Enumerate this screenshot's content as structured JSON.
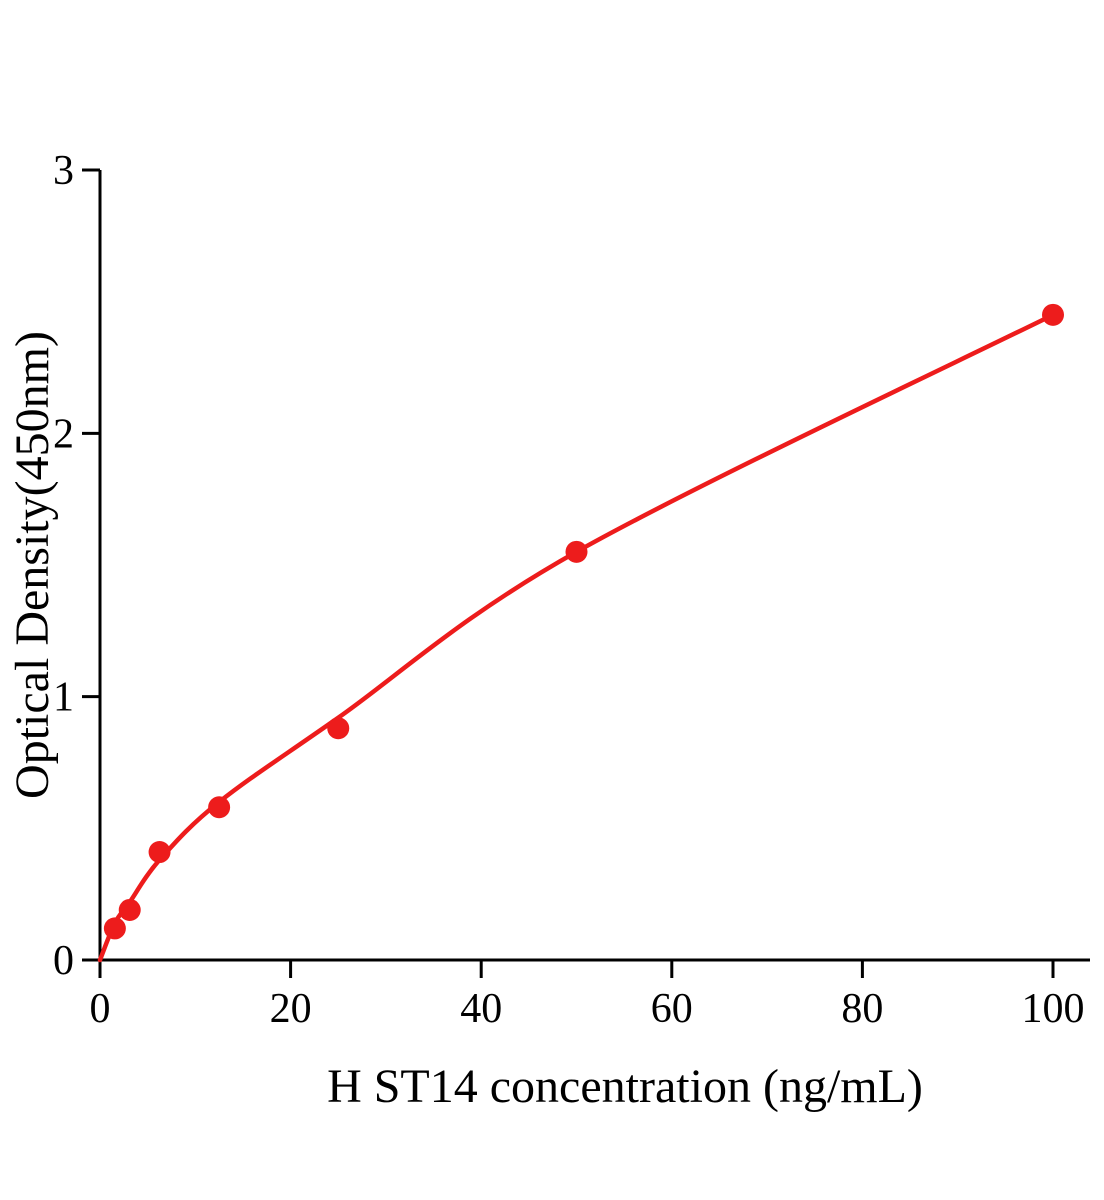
{
  "chart_data": {
    "type": "scatter",
    "title": "",
    "xlabel": "H ST14 concentration (ng/mL)",
    "ylabel": "Optical Density(450nm)",
    "xlim": [
      0,
      104
    ],
    "ylim": [
      0,
      3
    ],
    "x_ticks": [
      0,
      20,
      40,
      60,
      80,
      100
    ],
    "y_ticks": [
      0,
      1,
      2,
      3
    ],
    "grid": false,
    "legend": null,
    "point_color": "#ed1c1c",
    "line_color": "#ed1c1c",
    "axis_color": "#000000",
    "points": [
      {
        "x": 1.56,
        "y": 0.12
      },
      {
        "x": 3.12,
        "y": 0.19
      },
      {
        "x": 6.25,
        "y": 0.41
      },
      {
        "x": 12.5,
        "y": 0.58
      },
      {
        "x": 25,
        "y": 0.88
      },
      {
        "x": 50,
        "y": 1.55
      },
      {
        "x": 100,
        "y": 2.45
      }
    ],
    "curve": [
      {
        "x": 0,
        "y": 0.0
      },
      {
        "x": 1.56,
        "y": 0.14
      },
      {
        "x": 3.12,
        "y": 0.22
      },
      {
        "x": 6.25,
        "y": 0.38
      },
      {
        "x": 12.5,
        "y": 0.6
      },
      {
        "x": 25,
        "y": 0.92
      },
      {
        "x": 50,
        "y": 1.55
      },
      {
        "x": 100,
        "y": 2.45
      }
    ]
  }
}
